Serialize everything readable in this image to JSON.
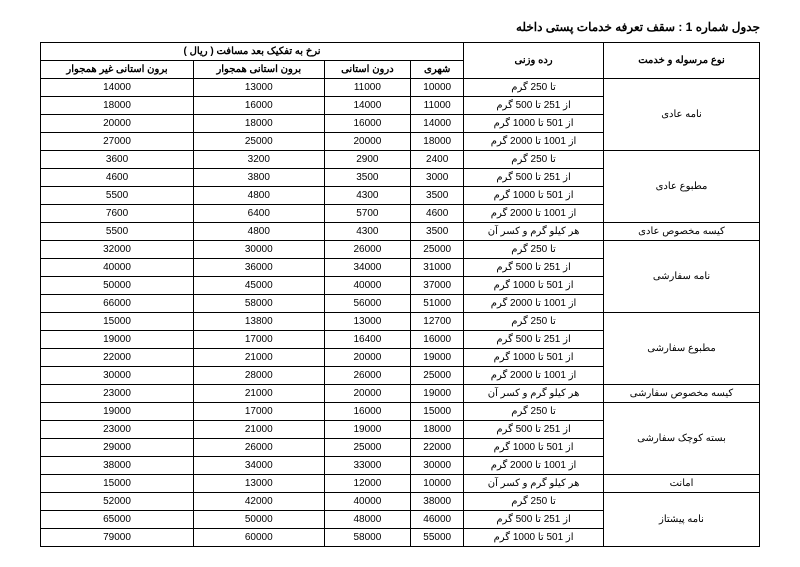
{
  "title": "جدول شماره 1 : سقف تعرفه خدمات پستی داخله",
  "header": {
    "service": "نوع مرسوله و خدمت",
    "weight": "رده وزنی",
    "rate_group": "نرخ به تفکیک بعد مسافت ( ریال )",
    "cols": {
      "c1": "شهری",
      "c2": "درون استانی",
      "c3": "برون استانی همجوار",
      "c4": "برون استانی غیر همجوار"
    }
  },
  "groups": [
    {
      "name": "نامه عادی",
      "rows": [
        {
          "wt": "تا 250 گرم",
          "v": [
            "10000",
            "11000",
            "13000",
            "14000"
          ]
        },
        {
          "wt": "از 251 تا 500 گرم",
          "v": [
            "11000",
            "14000",
            "16000",
            "18000"
          ]
        },
        {
          "wt": "از 501 تا 1000 گرم",
          "v": [
            "14000",
            "16000",
            "18000",
            "20000"
          ]
        },
        {
          "wt": "از 1001 تا 2000 گرم",
          "v": [
            "18000",
            "20000",
            "25000",
            "27000"
          ]
        }
      ]
    },
    {
      "name": "مطبوع عادی",
      "rows": [
        {
          "wt": "تا 250 گرم",
          "v": [
            "2400",
            "2900",
            "3200",
            "3600"
          ]
        },
        {
          "wt": "از 251 تا 500 گرم",
          "v": [
            "3000",
            "3500",
            "3800",
            "4600"
          ]
        },
        {
          "wt": "از 501 تا 1000 گرم",
          "v": [
            "3500",
            "4300",
            "4800",
            "5500"
          ]
        },
        {
          "wt": "از 1001 تا 2000 گرم",
          "v": [
            "4600",
            "5700",
            "6400",
            "7600"
          ]
        }
      ]
    },
    {
      "name": "کیسه مخصوص عادی",
      "rows": [
        {
          "wt": "هر کیلو گرم و کسر آن",
          "v": [
            "3500",
            "4300",
            "4800",
            "5500"
          ]
        }
      ]
    },
    {
      "name": "نامه سفارشی",
      "rows": [
        {
          "wt": "تا 250 گرم",
          "v": [
            "25000",
            "26000",
            "30000",
            "32000"
          ]
        },
        {
          "wt": "از 251 تا 500 گرم",
          "v": [
            "31000",
            "34000",
            "36000",
            "40000"
          ]
        },
        {
          "wt": "از 501 تا 1000 گرم",
          "v": [
            "37000",
            "40000",
            "45000",
            "50000"
          ]
        },
        {
          "wt": "از 1001 تا 2000 گرم",
          "v": [
            "51000",
            "56000",
            "58000",
            "66000"
          ]
        }
      ]
    },
    {
      "name": "مطبوع سفارشی",
      "rows": [
        {
          "wt": "تا 250 گرم",
          "v": [
            "12700",
            "13000",
            "13800",
            "15000"
          ]
        },
        {
          "wt": "از 251 تا 500 گرم",
          "v": [
            "16000",
            "16400",
            "17000",
            "19000"
          ]
        },
        {
          "wt": "از 501 تا 1000 گرم",
          "v": [
            "19000",
            "20000",
            "21000",
            "22000"
          ]
        },
        {
          "wt": "از 1001 تا 2000 گرم",
          "v": [
            "25000",
            "26000",
            "28000",
            "30000"
          ]
        }
      ]
    },
    {
      "name": "کیسه مخصوص سفارشی",
      "rows": [
        {
          "wt": "هر کیلو گرم و کسر آن",
          "v": [
            "19000",
            "20000",
            "21000",
            "23000"
          ]
        }
      ]
    },
    {
      "name": "بسته کوچک سفارشی",
      "rows": [
        {
          "wt": "تا 250 گرم",
          "v": [
            "15000",
            "16000",
            "17000",
            "19000"
          ]
        },
        {
          "wt": "از 251 تا 500 گرم",
          "v": [
            "18000",
            "19000",
            "21000",
            "23000"
          ]
        },
        {
          "wt": "از 501 تا 1000 گرم",
          "v": [
            "22000",
            "25000",
            "26000",
            "29000"
          ]
        },
        {
          "wt": "از 1001 تا 2000 گرم",
          "v": [
            "30000",
            "33000",
            "34000",
            "38000"
          ]
        }
      ]
    },
    {
      "name": "امانت",
      "rows": [
        {
          "wt": "هر کیلو گرم و کسر آن",
          "v": [
            "10000",
            "12000",
            "13000",
            "15000"
          ]
        }
      ]
    },
    {
      "name": "نامه پیشتاز",
      "rows": [
        {
          "wt": "تا 250 گرم",
          "v": [
            "38000",
            "40000",
            "42000",
            "52000"
          ]
        },
        {
          "wt": "از 251 تا 500 گرم",
          "v": [
            "46000",
            "48000",
            "50000",
            "65000"
          ]
        },
        {
          "wt": "از 501 تا 1000 گرم",
          "v": [
            "55000",
            "58000",
            "60000",
            "79000"
          ]
        }
      ]
    }
  ]
}
